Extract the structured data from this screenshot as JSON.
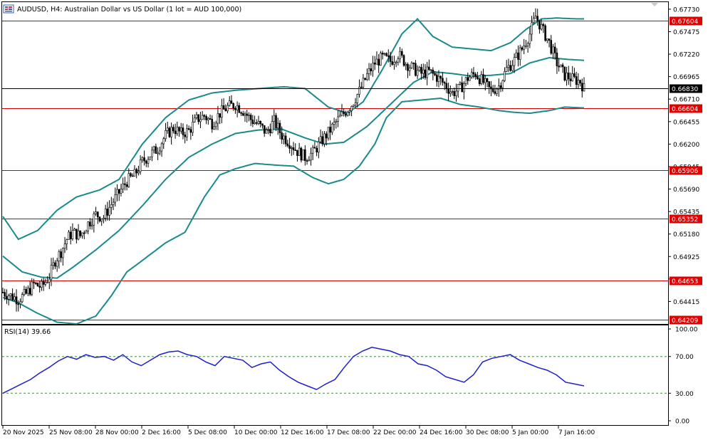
{
  "chart_title": "AUDUSD, H4:  Australian Dollar vs US Dollar (1 lot = AUD 100,000)",
  "rsi_label": "RSI(14) 39.66",
  "colors": {
    "candle": "#000000",
    "bollinger": "#1a8a8a",
    "level_line": "#d40000",
    "price_line": "#000000",
    "rsi": "#1f1fcc",
    "rsi_level": "#2a9d2a",
    "label_bg_red": "#e00000"
  },
  "chart_data": [
    {
      "type": "candlestick",
      "symbol": "AUDUSD",
      "timeframe": "H4",
      "ylim": [
        0.6416,
        0.6781
      ],
      "y_ticks": [
        "0.67730",
        "0.67475",
        "0.67220",
        "0.66965",
        "0.66710",
        "0.66455",
        "0.66200",
        "0.65945",
        "0.65690",
        "0.65435",
        "0.65180",
        "0.64925",
        "0.64670",
        "0.64415"
      ],
      "x_ticks": [
        "20 Nov 2025",
        "25 Nov 08:00",
        "28 Nov 00:00",
        "2 Dec 16:00",
        "5 Dec 08:00",
        "10 Dec 00:00",
        "12 Dec 16:00",
        "17 Dec 08:00",
        "22 Dec 00:00",
        "24 Dec 16:00",
        "30 Dec 08:00",
        "5 Jan 00:00",
        "7 Jan 16:00"
      ],
      "current_price": "0.66830",
      "horizontal_levels": [
        "0.67604",
        "0.66604",
        "0.65906",
        "0.65352",
        "0.64653",
        "0.64209"
      ],
      "path": [
        [
          0,
          0.6452
        ],
        [
          4,
          0.6448
        ],
        [
          8,
          0.6444
        ],
        [
          12,
          0.645
        ],
        [
          16,
          0.6461
        ],
        [
          20,
          0.6458
        ],
        [
          24,
          0.647
        ],
        [
          27,
          0.6488
        ],
        [
          30,
          0.6498
        ],
        [
          33,
          0.6512
        ],
        [
          36,
          0.652
        ],
        [
          40,
          0.6516
        ],
        [
          44,
          0.653
        ],
        [
          48,
          0.654
        ],
        [
          52,
          0.6537
        ],
        [
          56,
          0.6552
        ],
        [
          60,
          0.6565
        ],
        [
          64,
          0.6578
        ],
        [
          68,
          0.6585
        ],
        [
          72,
          0.66
        ],
        [
          76,
          0.6608
        ],
        [
          80,
          0.6615
        ],
        [
          84,
          0.663
        ],
        [
          88,
          0.6638
        ],
        [
          92,
          0.6632
        ],
        [
          96,
          0.6635
        ],
        [
          100,
          0.6648
        ],
        [
          104,
          0.6652
        ],
        [
          108,
          0.6644
        ],
        [
          112,
          0.6655
        ],
        [
          116,
          0.6662
        ],
        [
          120,
          0.6665
        ],
        [
          124,
          0.6658
        ],
        [
          128,
          0.6648
        ],
        [
          132,
          0.6642
        ],
        [
          136,
          0.6633
        ],
        [
          140,
          0.6646
        ],
        [
          144,
          0.663
        ],
        [
          148,
          0.6622
        ],
        [
          152,
          0.6612
        ],
        [
          156,
          0.6605
        ],
        [
          160,
          0.661
        ],
        [
          164,
          0.6622
        ],
        [
          168,
          0.6633
        ],
        [
          172,
          0.6645
        ],
        [
          176,
          0.6655
        ],
        [
          180,
          0.6665
        ],
        [
          184,
          0.668
        ],
        [
          188,
          0.6698
        ],
        [
          192,
          0.6712
        ],
        [
          196,
          0.6718
        ],
        [
          200,
          0.6714
        ],
        [
          204,
          0.6722
        ],
        [
          208,
          0.6712
        ],
        [
          212,
          0.6705
        ],
        [
          216,
          0.67
        ],
        [
          220,
          0.6702
        ],
        [
          224,
          0.6696
        ],
        [
          228,
          0.6688
        ],
        [
          232,
          0.6678
        ],
        [
          236,
          0.6683
        ],
        [
          240,
          0.6695
        ],
        [
          244,
          0.67
        ],
        [
          248,
          0.669
        ],
        [
          252,
          0.668
        ],
        [
          256,
          0.6686
        ],
        [
          260,
          0.6705
        ],
        [
          264,
          0.6715
        ],
        [
          268,
          0.6728
        ],
        [
          272,
          0.6745
        ],
        [
          275,
          0.6765
        ],
        [
          278,
          0.6752
        ],
        [
          282,
          0.6735
        ],
        [
          286,
          0.6712
        ],
        [
          290,
          0.6698
        ],
        [
          294,
          0.6694
        ],
        [
          298,
          0.6691
        ],
        [
          300,
          0.6683
        ]
      ],
      "bollinger_bands": [
        {
          "name": "upper",
          "path": [
            [
              0,
              0.6538
            ],
            [
              8,
              0.6512
            ],
            [
              18,
              0.6522
            ],
            [
              28,
              0.6545
            ],
            [
              38,
              0.656
            ],
            [
              50,
              0.6568
            ],
            [
              60,
              0.658
            ],
            [
              72,
              0.662
            ],
            [
              84,
              0.665
            ],
            [
              96,
              0.667
            ],
            [
              108,
              0.6678
            ],
            [
              120,
              0.6681
            ],
            [
              132,
              0.6683
            ],
            [
              145,
              0.6685
            ],
            [
              156,
              0.6683
            ],
            [
              168,
              0.6662
            ],
            [
              178,
              0.6655
            ],
            [
              186,
              0.6668
            ],
            [
              196,
              0.6705
            ],
            [
              206,
              0.6745
            ],
            [
              214,
              0.6762
            ],
            [
              222,
              0.6742
            ],
            [
              232,
              0.673
            ],
            [
              242,
              0.6728
            ],
            [
              252,
              0.6726
            ],
            [
              262,
              0.6735
            ],
            [
              270,
              0.675
            ],
            [
              278,
              0.6762
            ],
            [
              286,
              0.6763
            ],
            [
              296,
              0.6762
            ],
            [
              300,
              0.6762
            ]
          ]
        },
        {
          "name": "middle",
          "path": [
            [
              0,
              0.6493
            ],
            [
              10,
              0.6475
            ],
            [
              20,
              0.6469
            ],
            [
              28,
              0.6468
            ],
            [
              36,
              0.648
            ],
            [
              48,
              0.65
            ],
            [
              60,
              0.6522
            ],
            [
              72,
              0.655
            ],
            [
              84,
              0.658
            ],
            [
              96,
              0.6605
            ],
            [
              108,
              0.662
            ],
            [
              120,
              0.6632
            ],
            [
              132,
              0.6636
            ],
            [
              144,
              0.6637
            ],
            [
              156,
              0.6627
            ],
            [
              166,
              0.662
            ],
            [
              176,
              0.6622
            ],
            [
              188,
              0.664
            ],
            [
              200,
              0.6665
            ],
            [
              212,
              0.669
            ],
            [
              222,
              0.6702
            ],
            [
              232,
              0.67
            ],
            [
              242,
              0.6697
            ],
            [
              252,
              0.6698
            ],
            [
              262,
              0.67
            ],
            [
              272,
              0.6712
            ],
            [
              282,
              0.6718
            ],
            [
              292,
              0.6716
            ],
            [
              300,
              0.6715
            ]
          ]
        },
        {
          "name": "lower",
          "path": [
            [
              0,
              0.6446
            ],
            [
              8,
              0.644
            ],
            [
              18,
              0.6428
            ],
            [
              28,
              0.6418
            ],
            [
              38,
              0.6416
            ],
            [
              48,
              0.6425
            ],
            [
              56,
              0.6448
            ],
            [
              64,
              0.6475
            ],
            [
              72,
              0.6488
            ],
            [
              84,
              0.6508
            ],
            [
              94,
              0.652
            ],
            [
              104,
              0.656
            ],
            [
              112,
              0.6585
            ],
            [
              120,
              0.6592
            ],
            [
              130,
              0.6598
            ],
            [
              142,
              0.6596
            ],
            [
              150,
              0.6595
            ],
            [
              160,
              0.6582
            ],
            [
              168,
              0.6575
            ],
            [
              176,
              0.658
            ],
            [
              184,
              0.6595
            ],
            [
              192,
              0.662
            ],
            [
              198,
              0.665
            ],
            [
              206,
              0.6668
            ],
            [
              216,
              0.667
            ],
            [
              226,
              0.6672
            ],
            [
              236,
              0.6665
            ],
            [
              246,
              0.6662
            ],
            [
              256,
              0.6658
            ],
            [
              264,
              0.6656
            ],
            [
              272,
              0.6655
            ],
            [
              282,
              0.6658
            ],
            [
              290,
              0.6662
            ],
            [
              300,
              0.6661
            ]
          ]
        }
      ]
    },
    {
      "type": "line",
      "name": "RSI(14)",
      "ylim": [
        0,
        100
      ],
      "y_ticks": [
        "100.00",
        "70.00",
        "30.00",
        "0.00"
      ],
      "levels": [
        70,
        30
      ],
      "values": [
        30,
        35,
        40,
        45,
        52,
        58,
        65,
        70,
        67,
        72,
        69,
        70,
        66,
        72,
        64,
        60,
        66,
        72,
        75,
        76,
        72,
        70,
        64,
        60,
        70,
        68,
        66,
        58,
        62,
        64,
        55,
        48,
        42,
        38,
        34,
        40,
        45,
        58,
        70,
        76,
        80,
        78,
        76,
        72,
        70,
        62,
        60,
        55,
        48,
        45,
        42,
        50,
        64,
        68,
        70,
        72,
        66,
        62,
        58,
        55,
        50,
        42,
        40,
        38
      ]
    }
  ]
}
